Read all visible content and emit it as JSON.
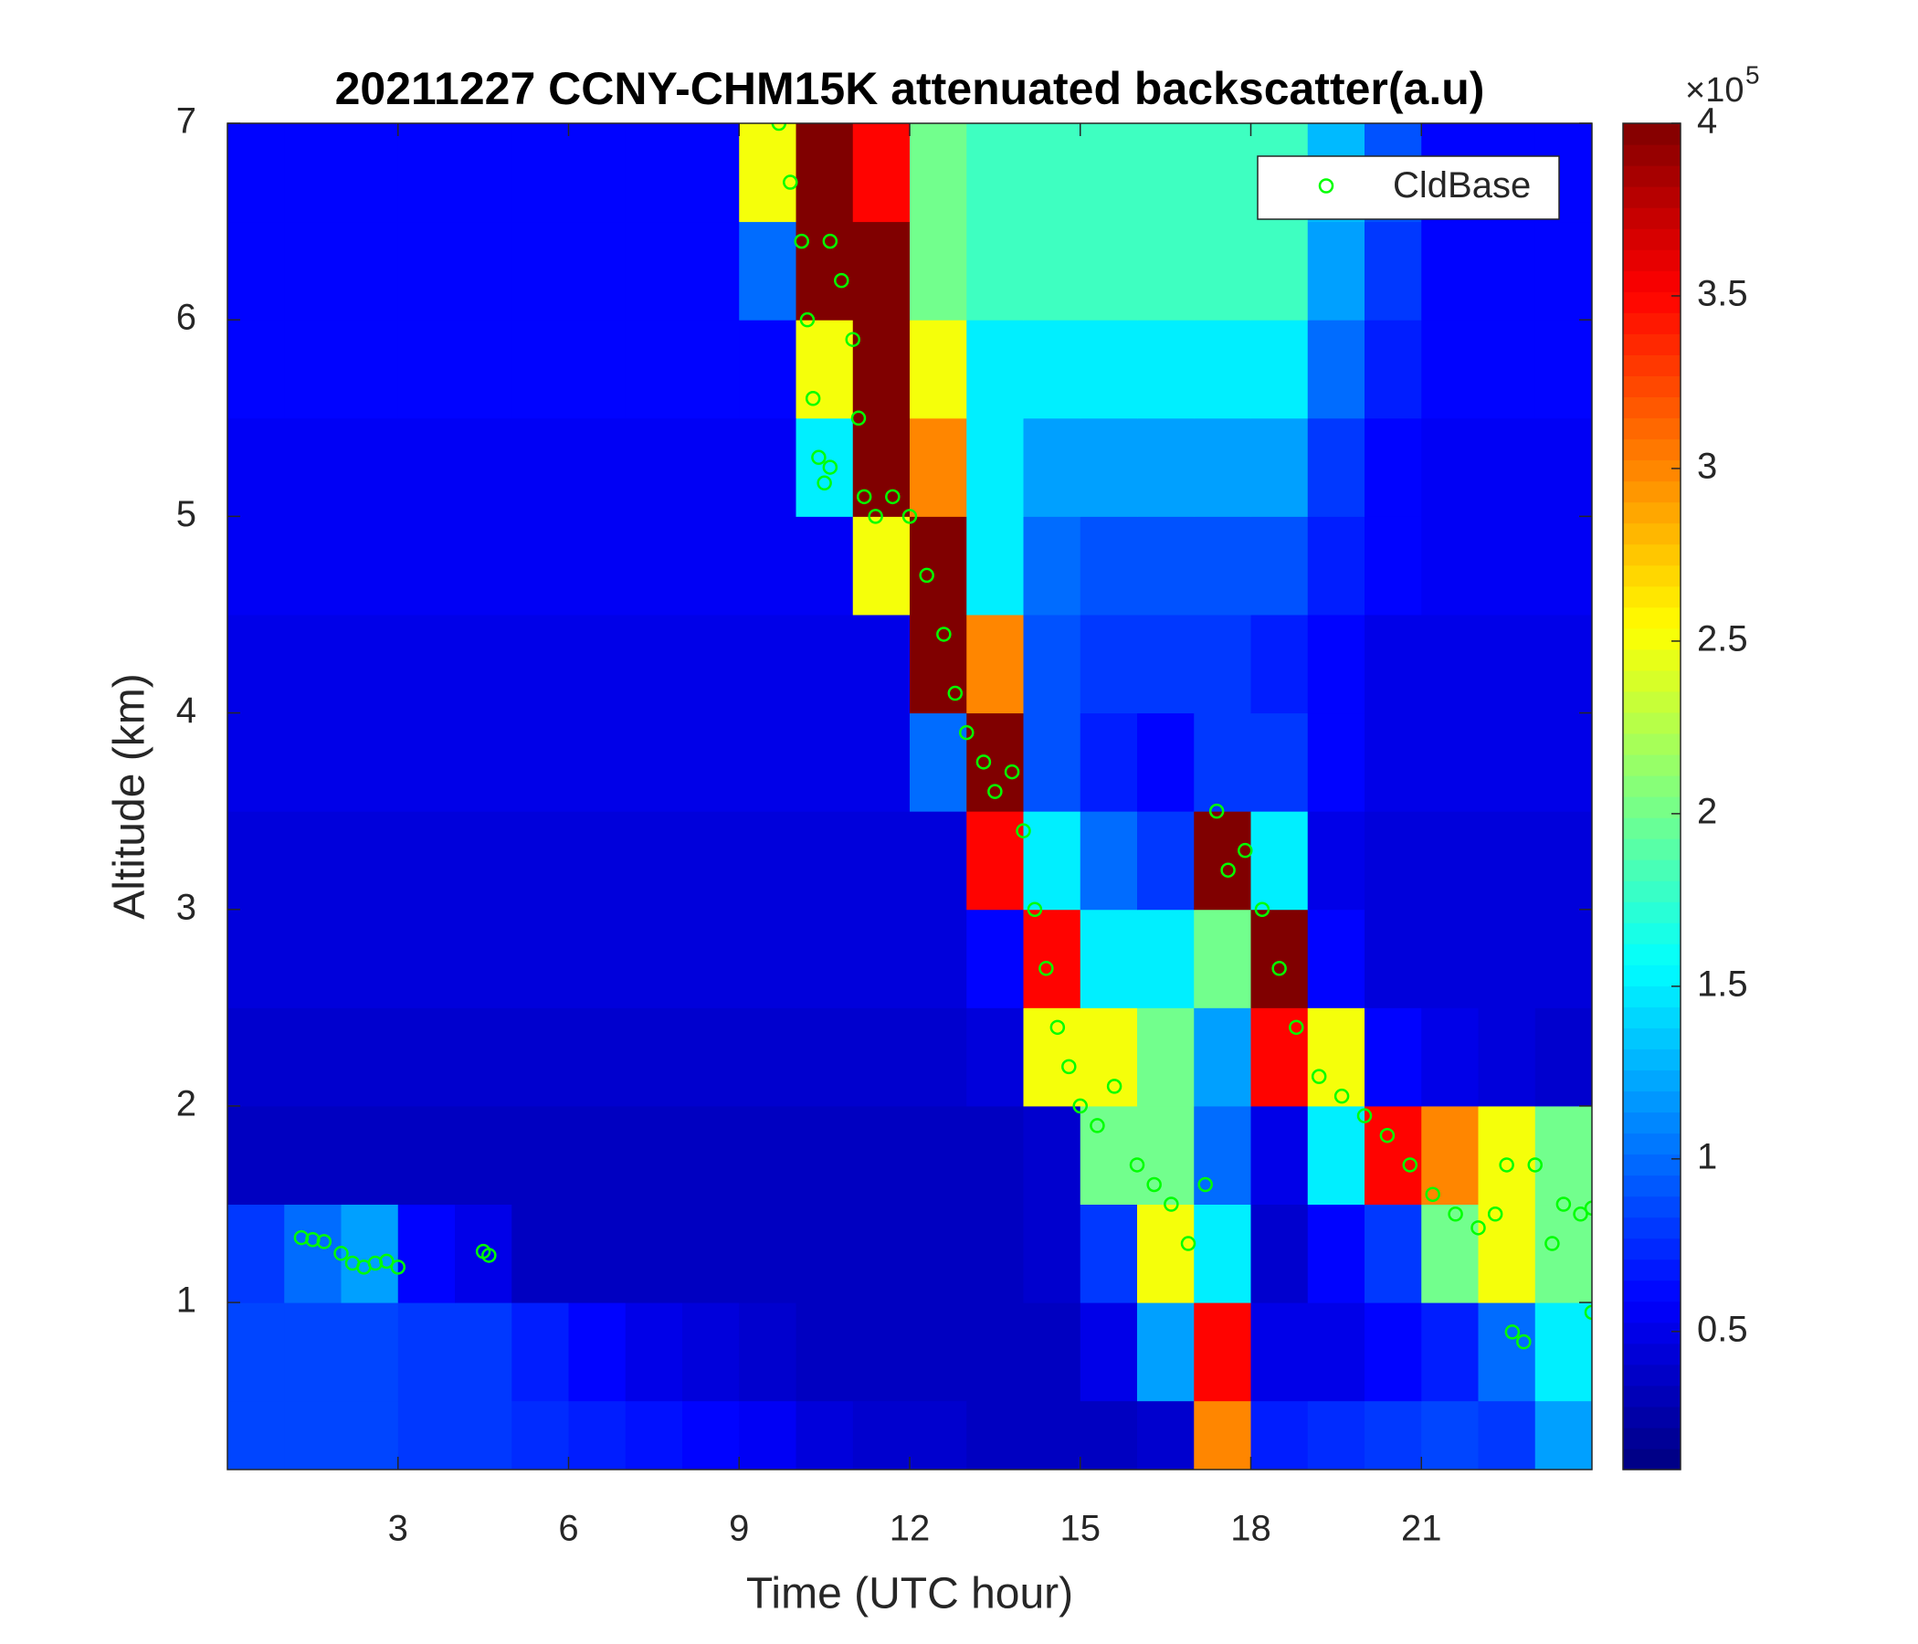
{
  "chart_data": {
    "type": "heatmap",
    "title": "20211227 CCNY-CHM15K attenuated backscatter(a.u)",
    "x_label": "Time (UTC hour)",
    "y_label": "Altitude (km)",
    "xlim": [
      0,
      24
    ],
    "ylim": [
      0.15,
      7
    ],
    "xticks": [
      3,
      6,
      9,
      12,
      15,
      18,
      21
    ],
    "yticks": [
      1,
      2,
      3,
      4,
      5,
      6,
      7
    ],
    "x_edges": [
      0,
      1,
      2,
      3,
      4,
      5,
      6,
      7,
      8,
      9,
      10,
      11,
      12,
      13,
      14,
      15,
      16,
      17,
      18,
      19,
      20,
      21,
      22,
      23,
      24
    ],
    "y_edges": [
      0.15,
      0.5,
      1,
      1.5,
      2,
      2.5,
      3,
      3.5,
      4,
      4.5,
      5,
      5.5,
      6,
      6.5,
      7
    ],
    "z": [
      [
        0.85,
        0.85,
        0.85,
        0.8,
        0.8,
        0.75,
        0.7,
        0.65,
        0.6,
        0.55,
        0.45,
        0.4,
        0.4,
        0.35,
        0.35,
        0.35,
        0.4,
        3.0,
        0.7,
        0.75,
        0.8,
        0.85,
        0.8,
        1.2
      ],
      [
        0.85,
        0.85,
        0.85,
        0.8,
        0.8,
        0.7,
        0.6,
        0.5,
        0.45,
        0.4,
        0.35,
        0.35,
        0.35,
        0.35,
        0.35,
        0.5,
        1.2,
        3.5,
        0.5,
        0.5,
        0.6,
        0.7,
        1.0,
        1.5
      ],
      [
        0.8,
        1.0,
        1.2,
        0.6,
        0.5,
        0.35,
        0.35,
        0.35,
        0.35,
        0.35,
        0.35,
        0.35,
        0.35,
        0.35,
        0.4,
        0.8,
        2.5,
        1.5,
        0.4,
        0.6,
        0.8,
        2.0,
        2.5,
        2.0
      ],
      [
        0.35,
        0.35,
        0.35,
        0.35,
        0.35,
        0.35,
        0.35,
        0.35,
        0.35,
        0.35,
        0.35,
        0.35,
        0.35,
        0.35,
        0.4,
        2.0,
        2.0,
        1.0,
        0.5,
        1.5,
        3.5,
        3.0,
        2.5,
        2.0
      ],
      [
        0.4,
        0.4,
        0.4,
        0.4,
        0.4,
        0.4,
        0.4,
        0.4,
        0.4,
        0.4,
        0.4,
        0.4,
        0.4,
        0.45,
        2.5,
        2.5,
        2.0,
        1.2,
        3.5,
        2.5,
        0.6,
        0.5,
        0.45,
        0.4
      ],
      [
        0.45,
        0.45,
        0.45,
        0.45,
        0.45,
        0.45,
        0.45,
        0.45,
        0.45,
        0.45,
        0.45,
        0.45,
        0.45,
        0.6,
        3.5,
        1.5,
        1.5,
        2.0,
        4.5,
        0.6,
        0.45,
        0.45,
        0.45,
        0.45
      ],
      [
        0.45,
        0.45,
        0.45,
        0.45,
        0.45,
        0.45,
        0.45,
        0.45,
        0.45,
        0.45,
        0.45,
        0.45,
        0.45,
        3.5,
        1.5,
        1.0,
        0.8,
        4.5,
        1.5,
        0.5,
        0.45,
        0.45,
        0.45,
        0.45
      ],
      [
        0.5,
        0.5,
        0.5,
        0.5,
        0.5,
        0.5,
        0.5,
        0.5,
        0.5,
        0.5,
        0.5,
        0.5,
        1.0,
        4.5,
        0.9,
        0.7,
        0.6,
        0.8,
        0.8,
        0.6,
        0.5,
        0.5,
        0.5,
        0.5
      ],
      [
        0.5,
        0.5,
        0.5,
        0.5,
        0.5,
        0.5,
        0.5,
        0.5,
        0.5,
        0.5,
        0.5,
        0.5,
        4.0,
        3.0,
        0.9,
        0.8,
        0.8,
        0.8,
        0.7,
        0.6,
        0.5,
        0.5,
        0.5,
        0.5
      ],
      [
        0.55,
        0.55,
        0.55,
        0.55,
        0.55,
        0.55,
        0.55,
        0.55,
        0.55,
        0.55,
        0.55,
        2.5,
        5,
        1.5,
        1.0,
        0.9,
        0.9,
        0.9,
        0.9,
        0.7,
        0.6,
        0.55,
        0.55,
        0.55
      ],
      [
        0.55,
        0.55,
        0.55,
        0.55,
        0.55,
        0.55,
        0.55,
        0.55,
        0.55,
        0.55,
        1.5,
        5,
        3.0,
        1.5,
        1.2,
        1.2,
        1.2,
        1.2,
        1.2,
        0.8,
        0.6,
        0.55,
        0.55,
        0.55
      ],
      [
        0.6,
        0.6,
        0.6,
        0.6,
        0.6,
        0.6,
        0.6,
        0.6,
        0.6,
        0.6,
        2.5,
        5,
        2.5,
        1.5,
        1.5,
        1.5,
        1.5,
        1.5,
        1.5,
        1.0,
        0.7,
        0.6,
        0.6,
        0.6
      ],
      [
        0.6,
        0.6,
        0.6,
        0.6,
        0.6,
        0.6,
        0.6,
        0.6,
        0.6,
        1.0,
        4.5,
        4.0,
        2.0,
        1.8,
        1.8,
        1.8,
        1.8,
        1.8,
        1.8,
        1.2,
        0.8,
        0.6,
        0.6,
        0.6
      ],
      [
        0.6,
        0.6,
        0.6,
        0.6,
        0.6,
        0.6,
        0.6,
        0.6,
        0.6,
        2.5,
        5,
        3.5,
        2.0,
        1.8,
        1.8,
        1.8,
        1.8,
        1.8,
        1.8,
        1.3,
        0.9,
        0.6,
        0.6,
        0.6
      ]
    ],
    "colormap": "jet",
    "clim": [
      0.1,
      4
    ],
    "cticks": [
      0.5,
      1,
      1.5,
      2,
      2.5,
      3,
      3.5,
      4
    ],
    "colorbar_multiplier": "×10",
    "colorbar_exponent": "5",
    "legend": "northeast",
    "overlay": {
      "type": "scatter",
      "name": "CldBase",
      "color": "#00ff00",
      "x": [
        1.3,
        1.5,
        1.7,
        2.0,
        2.2,
        2.4,
        2.6,
        2.8,
        3.0,
        4.5,
        4.6,
        9.7,
        9.9,
        10.1,
        10.2,
        10.3,
        10.4,
        10.5,
        10.6,
        10.6,
        10.8,
        11.0,
        11.1,
        11.2,
        11.4,
        11.7,
        12.0,
        12.3,
        12.6,
        12.8,
        13.0,
        13.3,
        13.5,
        13.8,
        14.0,
        14.2,
        14.4,
        14.6,
        14.8,
        15.0,
        15.3,
        15.6,
        16.0,
        16.3,
        16.6,
        16.9,
        17.2,
        17.4,
        17.6,
        17.9,
        18.2,
        18.5,
        18.8,
        19.2,
        19.6,
        20.0,
        20.4,
        20.8,
        21.2,
        21.6,
        22.0,
        22.3,
        22.5,
        22.6,
        22.8,
        23.0,
        23.3,
        23.5,
        23.8,
        24.0,
        24.0
      ],
      "y": [
        1.33,
        1.32,
        1.31,
        1.25,
        1.2,
        1.18,
        1.2,
        1.21,
        1.18,
        1.26,
        1.24,
        7.0,
        6.7,
        6.4,
        6.0,
        5.6,
        5.3,
        5.17,
        5.25,
        6.4,
        6.2,
        5.9,
        5.5,
        5.1,
        5.0,
        5.1,
        5.0,
        4.7,
        4.4,
        4.1,
        3.9,
        3.75,
        3.6,
        3.7,
        3.4,
        3.0,
        2.7,
        2.4,
        2.2,
        2.0,
        1.9,
        2.1,
        1.7,
        1.6,
        1.5,
        1.3,
        1.6,
        3.5,
        3.2,
        3.3,
        3.0,
        2.7,
        2.4,
        2.15,
        2.05,
        1.95,
        1.85,
        1.7,
        1.55,
        1.45,
        1.38,
        1.45,
        1.7,
        0.85,
        0.8,
        1.7,
        1.3,
        1.5,
        1.45,
        0.95,
        1.48
      ]
    }
  }
}
